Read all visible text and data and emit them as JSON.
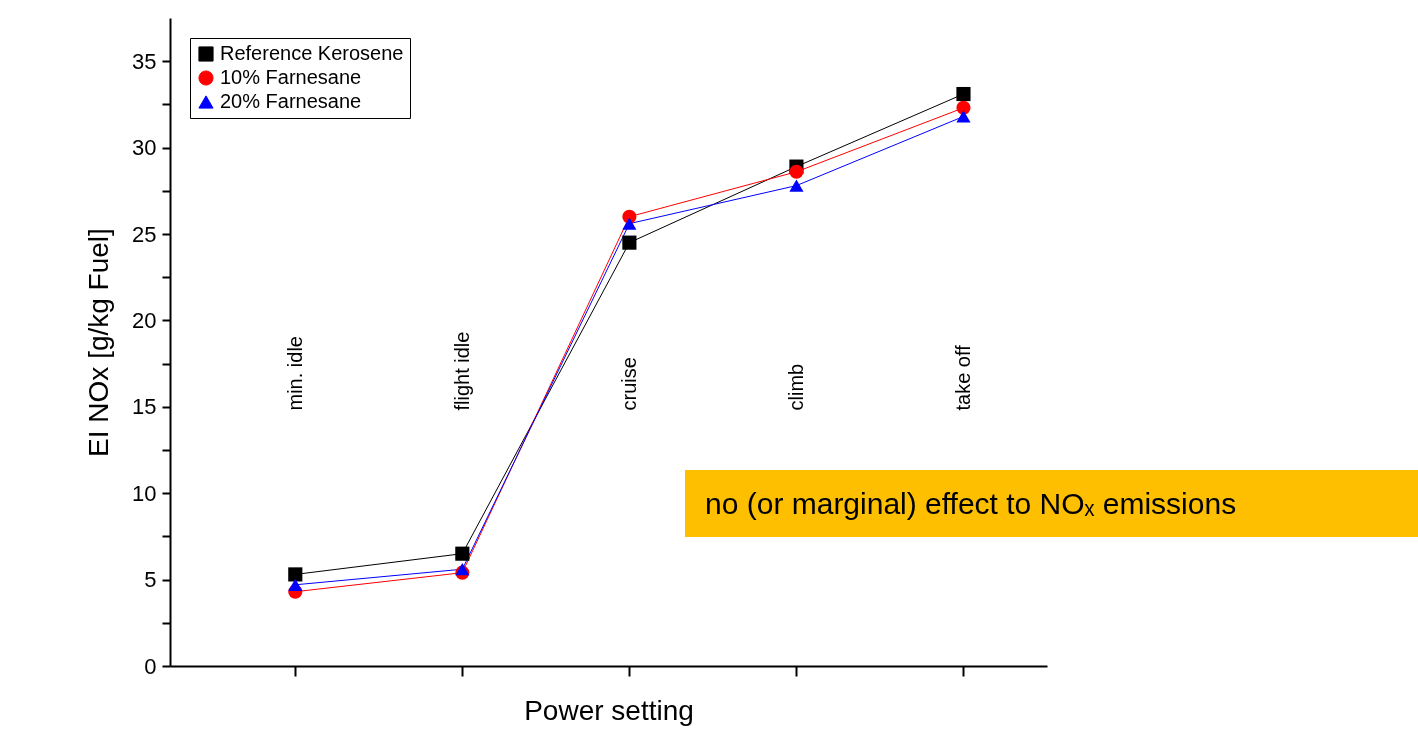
{
  "chart_data": {
    "type": "line",
    "xlabel": "Power setting",
    "ylabel": "EI NOx  [g/kg Fuel]",
    "categories": [
      "min. idle",
      "flight idle",
      "cruise",
      "climb",
      "take off"
    ],
    "series": [
      {
        "name": "Reference Kerosene",
        "color": "#000000",
        "marker": "square",
        "values": [
          5.3,
          6.5,
          24.5,
          28.9,
          33.1
        ]
      },
      {
        "name": "10% Farnesane",
        "color": "#ff0000",
        "marker": "circle",
        "values": [
          4.3,
          5.4,
          26.0,
          28.6,
          32.3
        ]
      },
      {
        "name": "20% Farnesane",
        "color": "#0000ff",
        "marker": "triangle",
        "values": [
          4.7,
          5.6,
          25.6,
          27.8,
          31.8
        ]
      }
    ],
    "ylim": [
      0,
      37.5
    ],
    "yticks": [
      0,
      {
        "value": 2.5,
        "label": null
      },
      5,
      {
        "value": 7.5,
        "label": null
      },
      10,
      {
        "value": 12.5,
        "label": null
      },
      15,
      {
        "value": 17.5,
        "label": null
      },
      20,
      {
        "value": 22.5,
        "label": null
      },
      25,
      {
        "value": 27.5,
        "label": null
      },
      30,
      {
        "value": 32.5,
        "label": null
      },
      35
    ],
    "grid": false,
    "legend": "top left",
    "line_style": "solid",
    "annotations": [
      "no (or marginal) effect to NOₓ emissions"
    ]
  }
}
